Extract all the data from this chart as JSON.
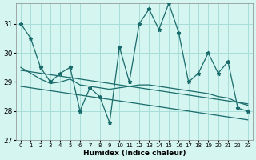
{
  "title": "",
  "xlabel": "Humidex (Indice chaleur)",
  "bg_color": "#d4f5f0",
  "line_color": "#1a6b6b",
  "grid_color": "#a8ddd8",
  "x": [
    0,
    1,
    2,
    3,
    4,
    5,
    6,
    7,
    8,
    9,
    10,
    11,
    12,
    13,
    14,
    15,
    16,
    17,
    18,
    19,
    20,
    21,
    22,
    23
  ],
  "y_main": [
    31.0,
    30.5,
    29.5,
    29.0,
    29.3,
    29.5,
    28.0,
    28.8,
    28.5,
    27.6,
    30.2,
    29.0,
    31.0,
    31.5,
    30.8,
    31.7,
    30.7,
    29.0,
    29.3,
    30.0,
    29.3,
    29.7,
    28.1,
    28.0
  ],
  "y_upper_trend": [
    29.4,
    29.35,
    29.3,
    29.25,
    29.2,
    29.15,
    29.1,
    29.05,
    29.0,
    28.95,
    28.9,
    28.85,
    28.8,
    28.75,
    28.7,
    28.65,
    28.6,
    28.55,
    28.5,
    28.45,
    28.4,
    28.35,
    28.3,
    28.25
  ],
  "y_lower_trend": [
    28.85,
    28.8,
    28.75,
    28.7,
    28.65,
    28.6,
    28.55,
    28.5,
    28.45,
    28.4,
    28.35,
    28.3,
    28.25,
    28.2,
    28.15,
    28.1,
    28.05,
    28.0,
    27.95,
    27.9,
    27.85,
    27.8,
    27.75,
    27.7
  ],
  "y_smooth": [
    29.5,
    29.3,
    29.1,
    28.95,
    29.0,
    29.1,
    28.9,
    28.85,
    28.8,
    28.75,
    28.8,
    28.85,
    28.9,
    28.9,
    28.85,
    28.8,
    28.75,
    28.7,
    28.65,
    28.6,
    28.5,
    28.45,
    28.3,
    28.2
  ],
  "ylim": [
    27.0,
    31.7
  ],
  "yticks": [
    27,
    28,
    29,
    30,
    31
  ],
  "xticks": [
    0,
    1,
    2,
    3,
    4,
    5,
    6,
    7,
    8,
    9,
    10,
    11,
    12,
    13,
    14,
    15,
    16,
    17,
    18,
    19,
    20,
    21,
    22,
    23
  ]
}
